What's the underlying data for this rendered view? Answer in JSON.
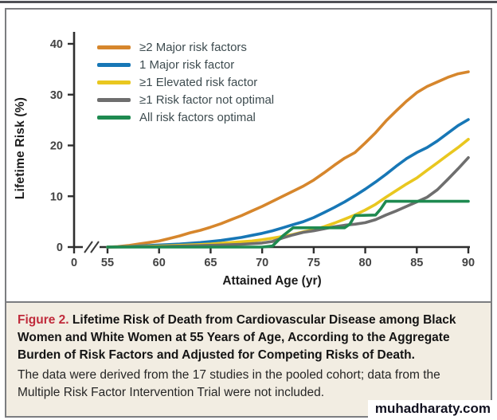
{
  "figure": {
    "caption": {
      "label": "Figure 2.",
      "title": "Lifetime Risk of Death from Cardiovascular Disease among Black Women and White Women at 55 Years of Age, According to the Aggregate Burden of Risk Factors and Adjusted for Competing Risks of Death.",
      "body": "The data were derived from the 17 studies in the pooled cohort; data from the Multiple Risk Factor Intervention Trial were not included."
    },
    "watermark": "muhadharaty.com"
  },
  "chart_data": {
    "type": "line",
    "title": "",
    "xlabel": "Attained Age (yr)",
    "ylabel": "Lifetime Risk (%)",
    "xlim": [
      55,
      90
    ],
    "ylim": [
      0,
      43
    ],
    "x_ticks": [
      55,
      60,
      65,
      70,
      75,
      80,
      85,
      90
    ],
    "y_ticks": [
      0,
      10,
      20,
      30,
      40
    ],
    "x_origin_label": "0",
    "x_axis_break": true,
    "grid": false,
    "legend_position": "top-left-inside",
    "axis_color": "#2e2e2e",
    "series": [
      {
        "name": "≥2 Major risk factors",
        "color": "#d6862c",
        "points": [
          [
            55,
            0
          ],
          [
            56,
            0.1
          ],
          [
            57,
            0.3
          ],
          [
            58,
            0.6
          ],
          [
            59,
            0.9
          ],
          [
            60,
            1.2
          ],
          [
            61,
            1.7
          ],
          [
            62,
            2.2
          ],
          [
            63,
            2.8
          ],
          [
            64,
            3.3
          ],
          [
            65,
            3.9
          ],
          [
            66,
            4.6
          ],
          [
            67,
            5.4
          ],
          [
            68,
            6.2
          ],
          [
            69,
            7.1
          ],
          [
            70,
            8.0
          ],
          [
            71,
            9.0
          ],
          [
            72,
            10.0
          ],
          [
            73,
            11.0
          ],
          [
            74,
            12.0
          ],
          [
            75,
            13.2
          ],
          [
            76,
            14.6
          ],
          [
            77,
            16.1
          ],
          [
            78,
            17.5
          ],
          [
            79,
            18.6
          ],
          [
            80,
            20.5
          ],
          [
            81,
            22.5
          ],
          [
            82,
            24.8
          ],
          [
            83,
            26.8
          ],
          [
            84,
            28.7
          ],
          [
            85,
            30.4
          ],
          [
            86,
            31.6
          ],
          [
            87,
            32.5
          ],
          [
            88,
            33.4
          ],
          [
            89,
            34.1
          ],
          [
            90,
            34.5
          ]
        ]
      },
      {
        "name": "1 Major risk factor",
        "color": "#1777b6",
        "points": [
          [
            55,
            0
          ],
          [
            57,
            0.1
          ],
          [
            59,
            0.3
          ],
          [
            60,
            0.4
          ],
          [
            62,
            0.6
          ],
          [
            64,
            0.9
          ],
          [
            65,
            1.1
          ],
          [
            66,
            1.3
          ],
          [
            67,
            1.6
          ],
          [
            68,
            1.9
          ],
          [
            69,
            2.3
          ],
          [
            70,
            2.7
          ],
          [
            71,
            3.2
          ],
          [
            72,
            3.8
          ],
          [
            73,
            4.4
          ],
          [
            74,
            5.0
          ],
          [
            75,
            5.8
          ],
          [
            76,
            6.8
          ],
          [
            77,
            7.8
          ],
          [
            78,
            8.9
          ],
          [
            79,
            10.1
          ],
          [
            80,
            11.4
          ],
          [
            81,
            12.8
          ],
          [
            82,
            14.3
          ],
          [
            83,
            15.9
          ],
          [
            84,
            17.4
          ],
          [
            85,
            18.6
          ],
          [
            86,
            19.6
          ],
          [
            87,
            20.9
          ],
          [
            88,
            22.4
          ],
          [
            89,
            23.9
          ],
          [
            90,
            25.1
          ]
        ]
      },
      {
        "name": "≥1 Elevated risk factor",
        "color": "#e9c71f",
        "points": [
          [
            55,
            0
          ],
          [
            58,
            0.1
          ],
          [
            60,
            0.2
          ],
          [
            62,
            0.35
          ],
          [
            64,
            0.5
          ],
          [
            65,
            0.6
          ],
          [
            66,
            0.75
          ],
          [
            67,
            0.9
          ],
          [
            68,
            1.05
          ],
          [
            69,
            1.2
          ],
          [
            70,
            1.45
          ],
          [
            71,
            1.75
          ],
          [
            72,
            2.1
          ],
          [
            73,
            2.5
          ],
          [
            74,
            3.0
          ],
          [
            75,
            3.4
          ],
          [
            76,
            4.0
          ],
          [
            77,
            4.7
          ],
          [
            78,
            5.5
          ],
          [
            79,
            6.3
          ],
          [
            80,
            7.3
          ],
          [
            81,
            8.4
          ],
          [
            82,
            9.8
          ],
          [
            83,
            11.1
          ],
          [
            84,
            12.4
          ],
          [
            85,
            13.6
          ],
          [
            86,
            15.1
          ],
          [
            87,
            16.6
          ],
          [
            88,
            18.1
          ],
          [
            89,
            19.6
          ],
          [
            90,
            21.2
          ]
        ]
      },
      {
        "name": "≥1 Risk factor not optimal",
        "color": "#6e6e6e",
        "points": [
          [
            55,
            0
          ],
          [
            58,
            0.05
          ],
          [
            60,
            0.1
          ],
          [
            63,
            0.25
          ],
          [
            65,
            0.35
          ],
          [
            68,
            0.55
          ],
          [
            70,
            0.8
          ],
          [
            71,
            1.1
          ],
          [
            72,
            1.8
          ],
          [
            73,
            2.4
          ],
          [
            74,
            2.9
          ],
          [
            75,
            3.2
          ],
          [
            76,
            3.6
          ],
          [
            77,
            4.0
          ],
          [
            78,
            4.3
          ],
          [
            79,
            4.5
          ],
          [
            80,
            4.8
          ],
          [
            81,
            5.4
          ],
          [
            82,
            6.3
          ],
          [
            83,
            7.1
          ],
          [
            84,
            8.0
          ],
          [
            85,
            8.9
          ],
          [
            86,
            9.8
          ],
          [
            87,
            11.3
          ],
          [
            88,
            13.3
          ],
          [
            89,
            15.4
          ],
          [
            90,
            17.6
          ]
        ]
      },
      {
        "name": "All risk factors optimal",
        "color": "#1e8a50",
        "points": [
          [
            55,
            0
          ],
          [
            70,
            0
          ],
          [
            71,
            0.2
          ],
          [
            72,
            2.2
          ],
          [
            73,
            3.8
          ],
          [
            78,
            3.8
          ],
          [
            78.5,
            4.5
          ],
          [
            79,
            6.2
          ],
          [
            81,
            6.3
          ],
          [
            81.5,
            7.5
          ],
          [
            82,
            9.0
          ],
          [
            90,
            9.0
          ]
        ]
      }
    ]
  }
}
